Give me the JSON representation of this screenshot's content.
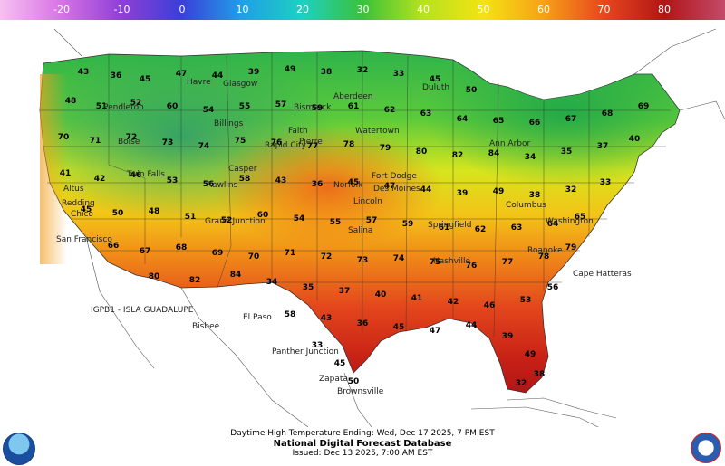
{
  "colorbar": {
    "ticks": [
      "-20",
      "-10",
      "0",
      "10",
      "20",
      "30",
      "40",
      "50",
      "60",
      "70",
      "80"
    ],
    "colors": [
      "#f6c1f0",
      "#d874e6",
      "#8f3fd6",
      "#3b3fd8",
      "#1f9fe8",
      "#1fd0c0",
      "#39c23a",
      "#b6e21f",
      "#f3e312",
      "#f7a018",
      "#e8461c",
      "#b01616",
      "#c44a6a"
    ]
  },
  "map_labels": {
    "island_label": "IGPB1 - ISLA GUADALUPE",
    "cities": [
      "Fort Dodge",
      "Des Moines",
      "Springfield",
      "Nashville",
      "Norfolk",
      "Faith",
      "Pierre",
      "Bismarck",
      "Aberdeen",
      "Watertown",
      "Ann Arbor",
      "Salina",
      "Lincoln",
      "Pendleton",
      "Boise",
      "Twin Falls",
      "Rawlins",
      "Casper",
      "Billings",
      "Glasgow",
      "Havre",
      "Altus",
      "Redding",
      "Chico",
      "San Francisco",
      "Bisbee",
      "El Paso",
      "Panther Junction",
      "Zapata",
      "Brownsville",
      "Cape Hatteras",
      "Roanoke",
      "Columbus",
      "Washington",
      "Grand Junction",
      "Rapid City",
      "Duluth"
    ]
  },
  "temperatures": [
    "43",
    "36",
    "45",
    "47",
    "44",
    "39",
    "49",
    "38",
    "32",
    "33",
    "45",
    "50",
    "48",
    "51",
    "52",
    "60",
    "54",
    "55",
    "57",
    "59",
    "61",
    "62",
    "63",
    "64",
    "65",
    "66",
    "67",
    "68",
    "69",
    "70",
    "71",
    "72",
    "73",
    "74",
    "75",
    "76",
    "77",
    "78",
    "79",
    "80",
    "82",
    "84",
    "34",
    "35",
    "37",
    "40",
    "41",
    "42",
    "46",
    "53",
    "56",
    "58"
  ],
  "footer": {
    "line1": "Daytime High Temperature Ending: Wed, Dec 17 2025, 7 PM EST",
    "line2": "National Digital Forecast Database",
    "line3": "Issued: Dec 13 2025, 7:00 AM EST"
  },
  "logos": {
    "left": "noaa-logo",
    "right": "national-weather-service-logo"
  }
}
